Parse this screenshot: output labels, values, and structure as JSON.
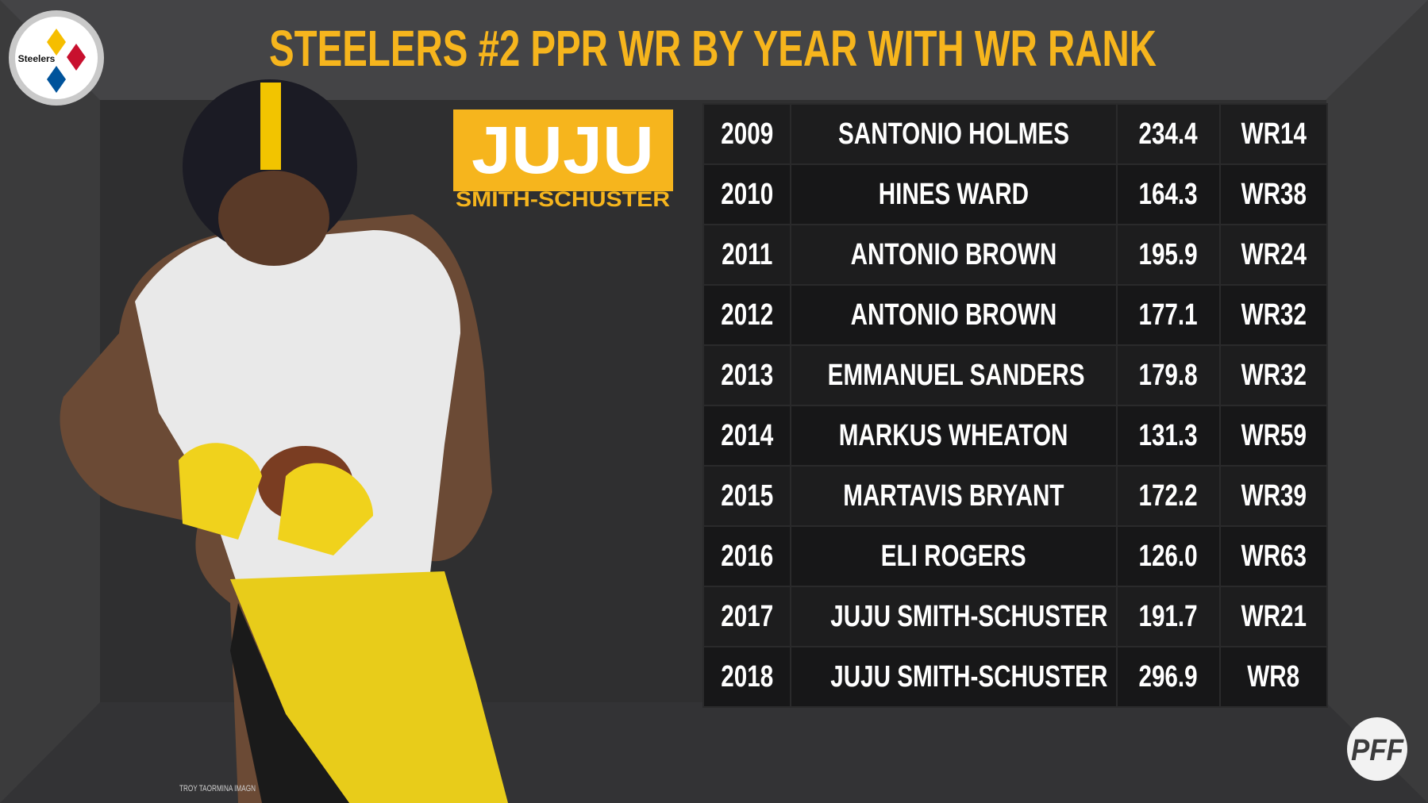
{
  "header": {
    "title": "STEELERS #2 PPR WR BY YEAR WITH WR RANK"
  },
  "logo": {
    "text": "Steelers"
  },
  "badge": {
    "first": "JUJU",
    "last": "SMITH-SCHUSTER"
  },
  "table": {
    "rows": [
      [
        "2009",
        "SANTONIO HOLMES",
        "234.4",
        "WR14"
      ],
      [
        "2010",
        "HINES WARD",
        "164.3",
        "WR38"
      ],
      [
        "2011",
        "ANTONIO BROWN",
        "195.9",
        "WR24"
      ],
      [
        "2012",
        "ANTONIO BROWN",
        "177.1",
        "WR32"
      ],
      [
        "2013",
        "EMMANUEL SANDERS",
        "179.8",
        "WR32"
      ],
      [
        "2014",
        "MARKUS WHEATON",
        "131.3",
        "WR59"
      ],
      [
        "2015",
        "MARTAVIS BRYANT",
        "172.2",
        "WR39"
      ],
      [
        "2016",
        "ELI ROGERS",
        "126.0",
        "WR63"
      ],
      [
        "2017",
        "JUJU SMITH-SCHUSTER",
        "191.7",
        "WR21"
      ],
      [
        "2018",
        "JUJU SMITH-SCHUSTER",
        "296.9",
        "WR8"
      ]
    ]
  },
  "credit": "TROY TAORMINA IMAGN",
  "brand": "PFF"
}
